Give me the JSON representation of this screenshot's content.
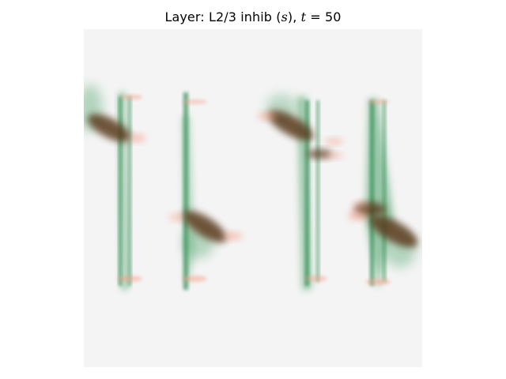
{
  "figure": {
    "title_prefix": "Layer: L2/3 inhib (",
    "title_var": "s",
    "title_mid": "), ",
    "title_time_var": "t",
    "title_time_eq": " = 50"
  },
  "colors": {
    "background": "#f4f4f4",
    "green": "#3a9a5c",
    "dark_green": "#2f7f4b",
    "brown": "#5a3a1a",
    "salmon": "#f4a08a"
  }
}
